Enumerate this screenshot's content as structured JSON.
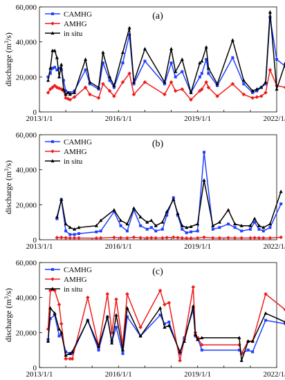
{
  "chart_data": [
    {
      "type": "line",
      "title": "(a)",
      "ylabel": "discharge (m3/s)",
      "x_axis_type": "date",
      "xlim": [
        "2013-01-01",
        "2022-01-01"
      ],
      "ylim": [
        0,
        60000
      ],
      "xticks": [
        "2013/1/1",
        "2016/1/1",
        "2019/1/1",
        "2022/1/1"
      ],
      "yticks": [
        "0",
        "20,000",
        "40,000",
        "60,000"
      ],
      "legend": "top-left",
      "series": [
        {
          "name": "CAMHG",
          "color": "#1f3fff",
          "marker": "square",
          "x": [
            "2013-05-01",
            "2013-06-01",
            "2013-07-01",
            "2013-08-01",
            "2013-09-01",
            "2013-10-01",
            "2013-11-01",
            "2013-12-01",
            "2014-01-01",
            "2014-02-01",
            "2014-03-01",
            "2014-05-01",
            "2014-10-01",
            "2014-12-01",
            "2015-04-01",
            "2015-06-01",
            "2015-09-01",
            "2015-11-01",
            "2016-03-01",
            "2016-06-01",
            "2016-08-01",
            "2017-01-01",
            "2017-10-01",
            "2018-01-01",
            "2018-03-01",
            "2018-06-01",
            "2018-10-01",
            "2019-02-01",
            "2019-03-01",
            "2019-05-01",
            "2019-06-01",
            "2019-10-01",
            "2020-05-01",
            "2020-10-01",
            "2021-02-01",
            "2021-04-01",
            "2021-06-01",
            "2021-08-01",
            "2021-10-01",
            "2022-01-01",
            "2022-05-01"
          ],
          "values": [
            20000,
            22000,
            25000,
            25500,
            24000,
            25000,
            24000,
            18000,
            12000,
            11000,
            11000,
            12000,
            24000,
            16000,
            13000,
            28000,
            18000,
            14000,
            28000,
            44000,
            16000,
            29000,
            16000,
            28000,
            20000,
            23000,
            11000,
            20000,
            22000,
            30000,
            22000,
            15000,
            31000,
            16000,
            11000,
            12000,
            14000,
            16000,
            54000,
            30000,
            26000
          ]
        },
        {
          "name": "AMHG",
          "color": "#ee1c1c",
          "marker": "diamond",
          "x": [
            "2013-05-01",
            "2013-06-01",
            "2013-07-01",
            "2013-08-01",
            "2013-09-01",
            "2013-10-01",
            "2013-11-01",
            "2013-12-01",
            "2014-01-01",
            "2014-02-01",
            "2014-03-01",
            "2014-05-01",
            "2014-10-01",
            "2014-12-01",
            "2015-04-01",
            "2015-06-01",
            "2015-09-01",
            "2015-11-01",
            "2016-03-01",
            "2016-06-01",
            "2016-08-01",
            "2017-01-01",
            "2017-10-01",
            "2018-01-01",
            "2018-03-01",
            "2018-06-01",
            "2018-10-01",
            "2019-02-01",
            "2019-03-01",
            "2019-05-01",
            "2019-06-01",
            "2019-10-01",
            "2020-05-01",
            "2020-10-01",
            "2021-02-01",
            "2021-04-01",
            "2021-06-01",
            "2021-08-01",
            "2021-10-01",
            "2022-01-01",
            "2022-05-01"
          ],
          "values": [
            11000,
            13000,
            14000,
            15000,
            14000,
            13500,
            13000,
            12000,
            8000,
            7500,
            7000,
            8500,
            14000,
            10000,
            8000,
            16000,
            12000,
            9000,
            17000,
            22000,
            10000,
            17000,
            10000,
            17000,
            12000,
            13000,
            7000,
            12000,
            13000,
            17000,
            14000,
            9000,
            16000,
            10000,
            8000,
            8500,
            9000,
            11000,
            24000,
            15000,
            14000
          ]
        },
        {
          "name": "in situ",
          "color": "#000000",
          "marker": "triangle",
          "x": [
            "2013-05-01",
            "2013-06-01",
            "2013-07-01",
            "2013-08-01",
            "2013-09-01",
            "2013-10-01",
            "2013-11-01",
            "2013-12-01",
            "2014-01-01",
            "2014-02-01",
            "2014-03-01",
            "2014-05-01",
            "2014-10-01",
            "2014-12-01",
            "2015-04-01",
            "2015-06-01",
            "2015-09-01",
            "2015-11-01",
            "2016-03-01",
            "2016-06-01",
            "2016-08-01",
            "2017-01-01",
            "2017-10-01",
            "2018-01-01",
            "2018-03-01",
            "2018-06-01",
            "2018-10-01",
            "2019-02-01",
            "2019-03-01",
            "2019-05-01",
            "2019-06-01",
            "2019-10-01",
            "2020-05-01",
            "2020-10-01",
            "2021-02-01",
            "2021-04-01",
            "2021-06-01",
            "2021-08-01",
            "2021-10-01",
            "2022-01-01",
            "2022-05-01"
          ],
          "values": [
            18000,
            25000,
            35000,
            35000,
            31000,
            20000,
            27000,
            13000,
            10000,
            11000,
            10000,
            11000,
            30000,
            17000,
            14000,
            34000,
            20000,
            15000,
            34000,
            48000,
            17000,
            36000,
            17000,
            36000,
            23000,
            30000,
            11000,
            28000,
            29000,
            37000,
            25000,
            16000,
            41000,
            18000,
            12000,
            13000,
            14000,
            17000,
            57000,
            13000,
            28000
          ]
        }
      ]
    },
    {
      "type": "line",
      "title": "(b)",
      "ylabel": "discharge (m3/s)",
      "x_axis_type": "date",
      "xlim": [
        "2013-01-01",
        "2022-01-01"
      ],
      "ylim": [
        0,
        60000
      ],
      "xticks": [
        "2013/1/1",
        "2016/1/1",
        "2019/1/1",
        "2022/1/1"
      ],
      "yticks": [
        "0",
        "20,000",
        "40,000",
        "60,000"
      ],
      "legend": "top-left",
      "series": [
        {
          "name": "CAMHG",
          "color": "#1f3fff",
          "marker": "square",
          "x": [
            "2013-09-01",
            "2013-11-01",
            "2014-01-01",
            "2014-03-01",
            "2014-05-01",
            "2014-07-01",
            "2015-03-01",
            "2015-05-01",
            "2015-11-01",
            "2016-02-01",
            "2016-05-01",
            "2016-08-01",
            "2016-11-01",
            "2017-02-01",
            "2017-04-01",
            "2017-06-01",
            "2017-09-01",
            "2017-11-01",
            "2018-02-01",
            "2018-04-01",
            "2018-06-01",
            "2018-08-01",
            "2018-10-01",
            "2019-01-01",
            "2019-04-01",
            "2019-08-01",
            "2019-11-01",
            "2020-03-01",
            "2020-06-01",
            "2020-09-01",
            "2021-01-01",
            "2021-03-01",
            "2021-05-01",
            "2021-07-01",
            "2021-10-01",
            "2022-03-01"
          ],
          "values": [
            12000,
            23000,
            5000,
            3000,
            3000,
            3500,
            4500,
            5000,
            16000,
            8000,
            5000,
            17000,
            8000,
            6000,
            7000,
            5000,
            6000,
            14000,
            24000,
            14000,
            6000,
            4000,
            4500,
            5000,
            50000,
            6000,
            7000,
            9000,
            7000,
            5000,
            6000,
            10000,
            6000,
            5000,
            7000,
            20500
          ]
        },
        {
          "name": "AMHG",
          "color": "#ee1c1c",
          "marker": "diamond",
          "x": [
            "2013-09-01",
            "2013-11-01",
            "2014-01-01",
            "2014-03-01",
            "2014-05-01",
            "2014-07-01",
            "2015-03-01",
            "2015-05-01",
            "2015-11-01",
            "2016-02-01",
            "2016-05-01",
            "2016-08-01",
            "2016-11-01",
            "2017-02-01",
            "2017-04-01",
            "2017-06-01",
            "2017-09-01",
            "2017-11-01",
            "2018-02-01",
            "2018-04-01",
            "2018-06-01",
            "2018-08-01",
            "2018-10-01",
            "2019-01-01",
            "2019-04-01",
            "2019-08-01",
            "2019-11-01",
            "2020-03-01",
            "2020-06-01",
            "2020-09-01",
            "2021-01-01",
            "2021-03-01",
            "2021-05-01",
            "2021-07-01",
            "2021-10-01",
            "2022-03-01"
          ],
          "values": [
            1200,
            1300,
            1100,
            1000,
            1000,
            1000,
            900,
            1000,
            1300,
            1100,
            1000,
            1400,
            1100,
            1000,
            1100,
            1000,
            1000,
            1200,
            1400,
            1200,
            1000,
            900,
            900,
            1000,
            1400,
            1000,
            1000,
            1100,
            1000,
            1000,
            1000,
            1100,
            1000,
            1000,
            1000,
            1400
          ]
        },
        {
          "name": "in situ",
          "color": "#000000",
          "marker": "triangle",
          "x": [
            "2013-09-01",
            "2013-11-01",
            "2014-01-01",
            "2014-03-01",
            "2014-05-01",
            "2014-07-01",
            "2015-03-01",
            "2015-05-01",
            "2015-11-01",
            "2016-02-01",
            "2016-05-01",
            "2016-08-01",
            "2016-11-01",
            "2017-02-01",
            "2017-04-01",
            "2017-06-01",
            "2017-09-01",
            "2017-11-01",
            "2018-02-01",
            "2018-04-01",
            "2018-06-01",
            "2018-08-01",
            "2018-10-01",
            "2019-01-01",
            "2019-04-01",
            "2019-08-01",
            "2019-11-01",
            "2020-03-01",
            "2020-06-01",
            "2020-09-01",
            "2021-01-01",
            "2021-03-01",
            "2021-05-01",
            "2021-07-01",
            "2021-10-01",
            "2022-03-01"
          ],
          "values": [
            13000,
            23000,
            9000,
            7000,
            6000,
            7000,
            8000,
            11000,
            17000,
            11000,
            9000,
            18000,
            13000,
            10000,
            11000,
            8000,
            10000,
            16000,
            23000,
            15000,
            8000,
            7000,
            7500,
            9000,
            34000,
            8000,
            10000,
            17000,
            9000,
            8000,
            8000,
            12000,
            8000,
            7000,
            9000,
            27500
          ]
        }
      ]
    },
    {
      "type": "line",
      "title": "(c)",
      "ylabel": "discharge (m3/s)",
      "x_axis_type": "date",
      "xlim": [
        "2013-01-01",
        "2022-01-01"
      ],
      "ylim": [
        0,
        60000
      ],
      "xticks": [
        "2013/1/1",
        "2016/1/1",
        "2019/1/1",
        "2022/1/1"
      ],
      "yticks": [
        "0",
        "20,000",
        "40,000",
        "60,000"
      ],
      "legend": "top-left",
      "series": [
        {
          "name": "CAMHG",
          "color": "#1f3fff",
          "marker": "square",
          "x": [
            "2013-05-01",
            "2013-06-01",
            "2013-08-01",
            "2013-10-01",
            "2013-11-01",
            "2014-01-01",
            "2014-03-01",
            "2014-04-01",
            "2014-11-01",
            "2015-04-01",
            "2015-08-01",
            "2015-10-01",
            "2015-12-01",
            "2016-03-01",
            "2016-05-01",
            "2016-11-01",
            "2017-08-01",
            "2017-10-01",
            "2017-12-01",
            "2018-05-01",
            "2018-07-01",
            "2018-11-01",
            "2018-12-01",
            "2019-01-01",
            "2019-03-01",
            "2020-08-01",
            "2020-09-01",
            "2020-12-01",
            "2021-02-01",
            "2021-08-01",
            "2022-05-01"
          ],
          "values": [
            16000,
            28000,
            30000,
            18000,
            19000,
            9000,
            8000,
            8000,
            27000,
            10000,
            29000,
            15000,
            23000,
            8000,
            29000,
            18000,
            30000,
            25000,
            26000,
            8000,
            17000,
            33000,
            18000,
            17000,
            10000,
            10000,
            8000,
            10000,
            9000,
            27000,
            25000
          ]
        },
        {
          "name": "AMHG",
          "color": "#ee1c1c",
          "marker": "diamond",
          "x": [
            "2013-05-01",
            "2013-06-01",
            "2013-08-01",
            "2013-10-01",
            "2013-11-01",
            "2014-01-01",
            "2014-03-01",
            "2014-04-01",
            "2014-11-01",
            "2015-04-01",
            "2015-08-01",
            "2015-10-01",
            "2015-12-01",
            "2016-03-01",
            "2016-05-01",
            "2016-11-01",
            "2017-08-01",
            "2017-10-01",
            "2017-12-01",
            "2018-05-01",
            "2018-07-01",
            "2018-11-01",
            "2018-12-01",
            "2019-01-01",
            "2019-03-01",
            "2020-08-01",
            "2020-09-01",
            "2020-12-01",
            "2021-02-01",
            "2021-08-01",
            "2022-05-01"
          ],
          "values": [
            22000,
            44000,
            44000,
            36000,
            25000,
            5000,
            5000,
            5000,
            40000,
            12000,
            42000,
            20000,
            39000,
            13000,
            42000,
            23000,
            44000,
            36000,
            37000,
            4000,
            16000,
            46000,
            20000,
            17000,
            13000,
            13000,
            8000,
            15000,
            15000,
            42000,
            33000
          ]
        },
        {
          "name": "in situ",
          "color": "#000000",
          "marker": "triangle",
          "x": [
            "2013-05-01",
            "2013-06-01",
            "2013-08-01",
            "2013-10-01",
            "2013-11-01",
            "2014-01-01",
            "2014-03-01",
            "2014-04-01",
            "2014-11-01",
            "2015-04-01",
            "2015-08-01",
            "2015-10-01",
            "2015-12-01",
            "2016-03-01",
            "2016-05-01",
            "2016-11-01",
            "2017-08-01",
            "2017-10-01",
            "2017-12-01",
            "2018-05-01",
            "2018-07-01",
            "2018-11-01",
            "2018-12-01",
            "2019-01-01",
            "2019-03-01",
            "2020-08-01",
            "2020-09-01",
            "2020-12-01",
            "2021-02-01",
            "2021-08-01",
            "2022-05-01"
          ],
          "values": [
            15000,
            34000,
            31000,
            22000,
            20000,
            7000,
            8000,
            9000,
            27000,
            12000,
            29000,
            14000,
            30000,
            10000,
            34000,
            18000,
            34000,
            23000,
            24000,
            9000,
            15000,
            35000,
            19000,
            16000,
            17000,
            17000,
            4000,
            15000,
            15000,
            31000,
            26000
          ]
        }
      ]
    }
  ]
}
